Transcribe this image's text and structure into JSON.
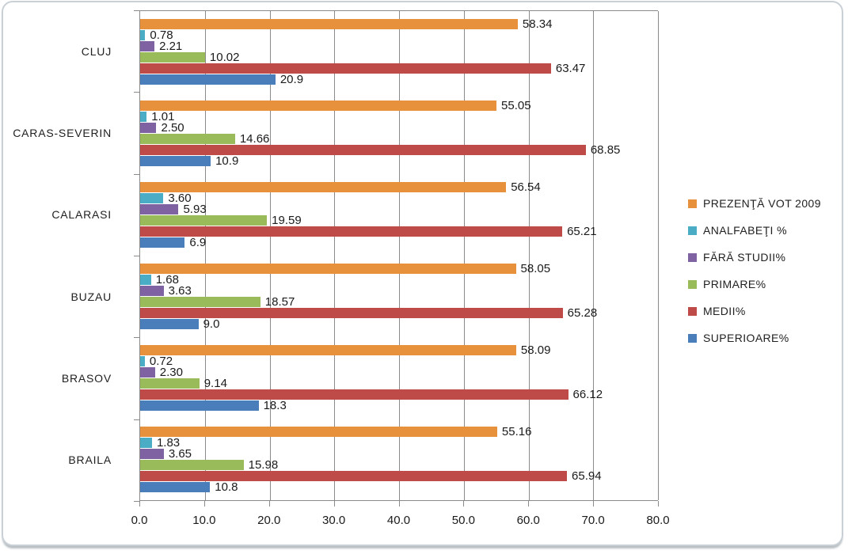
{
  "chart_data": {
    "type": "bar",
    "orientation": "horizontal",
    "title": "",
    "xlabel": "",
    "ylabel": "",
    "xlim": [
      0,
      80
    ],
    "x_ticks": [
      "0.0",
      "10.0",
      "20.0",
      "30.0",
      "40.0",
      "50.0",
      "60.0",
      "70.0",
      "80.0"
    ],
    "grid": true,
    "legend_position": "right",
    "categories": [
      "CLUJ",
      "CARAS-SEVERIN",
      "CALARASI",
      "BUZAU",
      "BRASOV",
      "BRAILA"
    ],
    "series": [
      {
        "name": "PREZENŢĂ VOT 2009",
        "color": "#e8913d",
        "values": [
          58.34,
          55.05,
          56.54,
          58.05,
          58.09,
          55.16
        ],
        "labels": [
          "58.34",
          "55.05",
          "56.54",
          "58.05",
          "58.09",
          "55.16"
        ]
      },
      {
        "name": "ANALFABEŢI %",
        "color": "#4bacc6",
        "values": [
          0.78,
          1.01,
          3.6,
          1.68,
          0.72,
          1.83
        ],
        "labels": [
          "0.78",
          "1.01",
          "3.60",
          "1.68",
          "0.72",
          "1.83"
        ]
      },
      {
        "name": "FĂRĂ STUDII%",
        "color": "#7e62a1",
        "values": [
          2.21,
          2.5,
          5.93,
          3.63,
          2.3,
          3.65
        ],
        "labels": [
          "2.21",
          "2.50",
          "5.93",
          "3.63",
          "2.30",
          "3.65"
        ]
      },
      {
        "name": "PRIMARE%",
        "color": "#9abb59",
        "values": [
          10.02,
          14.66,
          19.59,
          18.57,
          9.14,
          15.98
        ],
        "labels": [
          "10.02",
          "14.66",
          "19.59",
          "18.57",
          "9.14",
          "15.98"
        ]
      },
      {
        "name": "MEDII%",
        "color": "#be4b48",
        "values": [
          63.47,
          68.85,
          65.21,
          65.28,
          66.12,
          65.94
        ],
        "labels": [
          "63.47",
          "68.85",
          "65.21",
          "65.28",
          "66.12",
          "65.94"
        ]
      },
      {
        "name": "SUPERIOARE%",
        "color": "#4a7ebb",
        "values": [
          20.9,
          10.9,
          6.9,
          9.0,
          18.3,
          10.8
        ],
        "labels": [
          "20.9",
          "10.9",
          "6.9",
          "9.0",
          "18.3",
          "10.8"
        ]
      }
    ]
  },
  "style": {
    "gridline_color": "#8a8a8a",
    "axis_color": "#8a8a8a",
    "text_color": "#212121",
    "frame_border_color": "#c9d0d6",
    "background_color": "#ffffff"
  }
}
